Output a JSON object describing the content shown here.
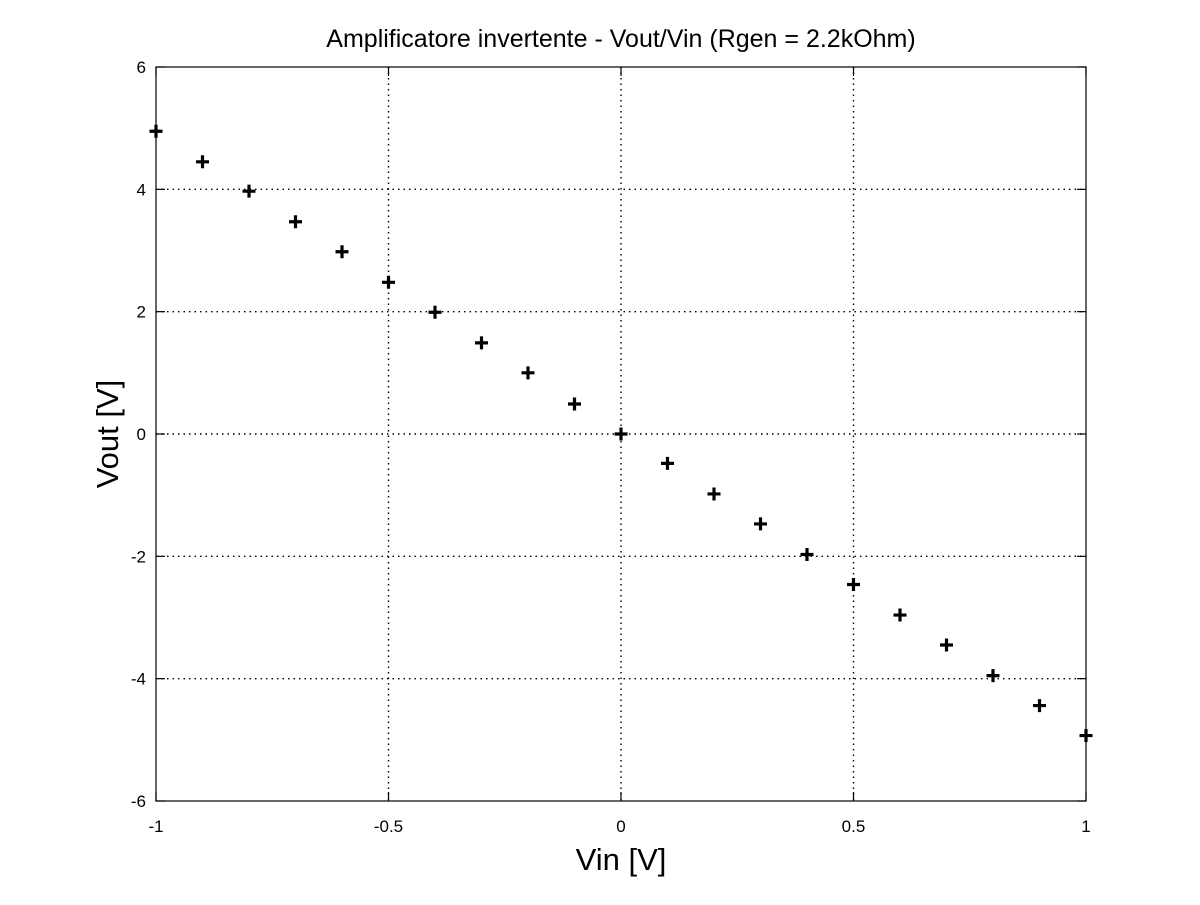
{
  "chart_data": {
    "type": "scatter",
    "title": "Amplificatore invertente - Vout/Vin (Rgen = 2.2kOhm)",
    "xlabel": "Vin [V]",
    "ylabel": "Vout [V]",
    "xlim": [
      -1,
      1
    ],
    "ylim": [
      -6,
      6
    ],
    "xticks": [
      -1,
      -0.5,
      0,
      0.5,
      1
    ],
    "xtick_labels": [
      "-1",
      "-0.5",
      "0",
      "0.5",
      "1"
    ],
    "yticks": [
      -6,
      -4,
      -2,
      0,
      2,
      4,
      6
    ],
    "ytick_labels": [
      "-6",
      "-4",
      "-2",
      "0",
      "2",
      "4",
      "6"
    ],
    "grid": true,
    "grid_style": "dotted",
    "marker": "plus",
    "colors": {
      "marker": "#000000",
      "axes": "#000000",
      "grid": "#000000",
      "background": "#ffffff"
    },
    "series": [
      {
        "x": [
          -1,
          -0.9,
          -0.8,
          -0.7,
          -0.6,
          -0.5,
          -0.4,
          -0.3,
          -0.2,
          -0.1,
          0,
          0.1,
          0.2,
          0.3,
          0.4,
          0.5,
          0.6,
          0.7,
          0.8,
          0.9,
          1
        ],
        "y": [
          4.95,
          4.45,
          3.97,
          3.47,
          2.98,
          2.48,
          1.99,
          1.49,
          1.0,
          0.49,
          0.0,
          -0.48,
          -0.98,
          -1.47,
          -1.97,
          -2.46,
          -2.96,
          -3.45,
          -3.95,
          -4.44,
          -4.93
        ]
      }
    ]
  }
}
